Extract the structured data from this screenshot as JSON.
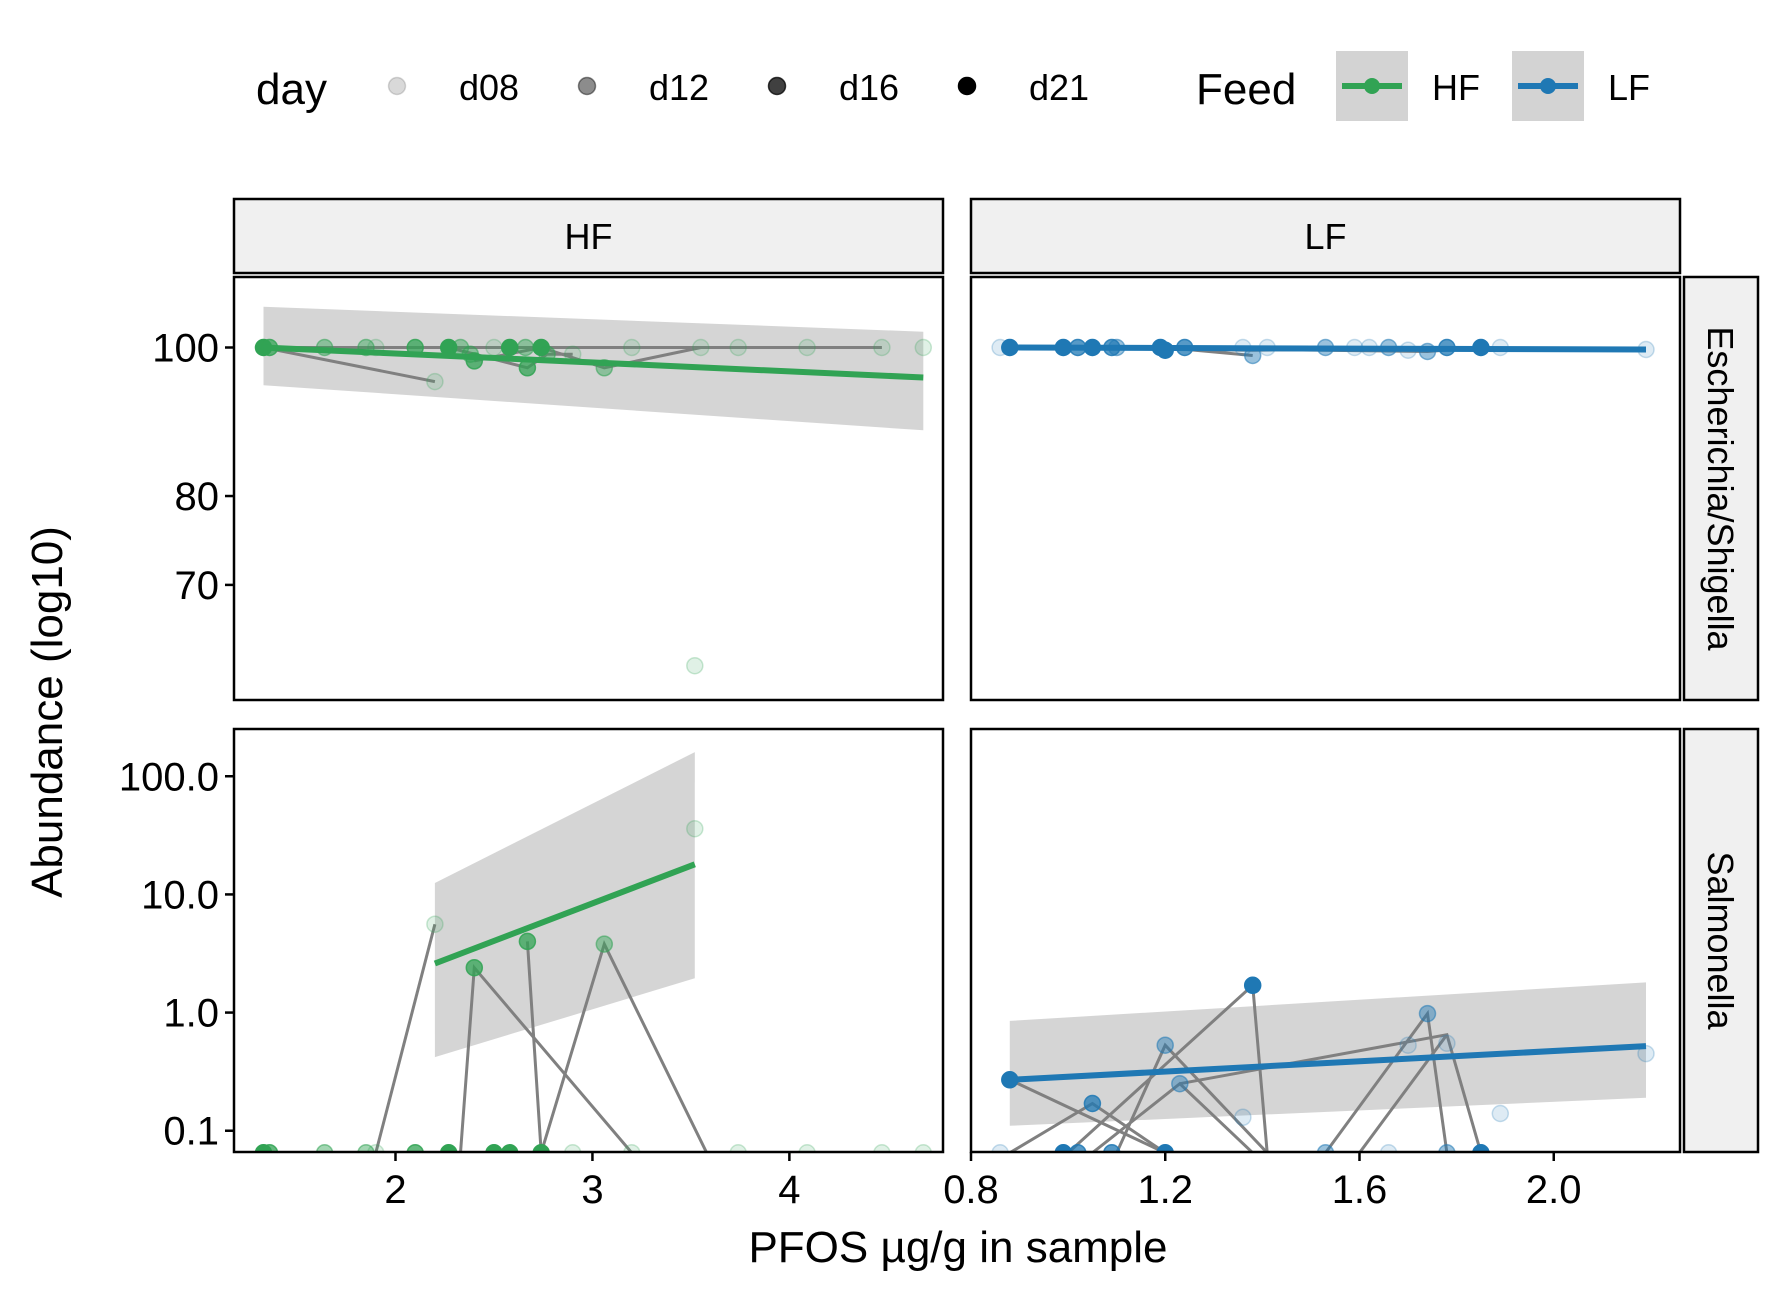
{
  "chart_data": {
    "type": "scatter",
    "xlabel": "PFOS µg/g in sample",
    "ylabel": "Abundance (log10)",
    "y_scale": "log10",
    "grid": false,
    "legend_placement": "top",
    "legend": {
      "day": {
        "title": "day",
        "items": [
          {
            "label": "d08",
            "opacity": 0.15
          },
          {
            "label": "d12",
            "opacity": 0.45
          },
          {
            "label": "d16",
            "opacity": 0.75
          },
          {
            "label": "d21",
            "opacity": 1.0
          }
        ]
      },
      "feed": {
        "title": "Feed",
        "items": [
          {
            "label": "HF",
            "color": "#31a354"
          },
          {
            "label": "LF",
            "color": "#1f78b4"
          }
        ]
      }
    },
    "colors": {
      "HF": "#31a354",
      "LF": "#1f78b4",
      "trajectory": "#808080",
      "ribbon": "#d3d3d3",
      "strip": "#f0f0f0"
    },
    "columns": [
      "HF",
      "LF"
    ],
    "rows": [
      "Escherichia/Shigella",
      "Salmonella"
    ],
    "x_axes": {
      "HF": {
        "range": [
          1.18,
          4.78
        ],
        "ticks": [
          2,
          3,
          4
        ],
        "tick_labels": [
          "2",
          "3",
          "4"
        ]
      },
      "LF": {
        "range": [
          0.8,
          2.26
        ],
        "ticks": [
          0.8,
          1.2,
          1.6,
          2.0
        ],
        "tick_labels": [
          "0.8",
          "1.2",
          "1.6",
          "2.0"
        ]
      }
    },
    "y_axes": {
      "Escherichia/Shigella": {
        "range": [
          1.77,
          2.046
        ],
        "ticks": [
          70,
          80,
          100
        ],
        "tick_labels": [
          "70",
          "80",
          "100"
        ]
      },
      "Salmonella": {
        "range": [
          -1.18,
          2.4
        ],
        "ticks": [
          0.1,
          1,
          10,
          100
        ],
        "tick_labels": [
          "0.1",
          "1.0",
          "10.0",
          "100.0"
        ]
      }
    },
    "panels": [
      {
        "col": "HF",
        "row": "Escherichia/Shigella",
        "points": [
          {
            "x": 1.33,
            "y": 100,
            "day": "d21"
          },
          {
            "x": 1.36,
            "y": 100,
            "day": "d16"
          },
          {
            "x": 1.64,
            "y": 100,
            "day": "d12"
          },
          {
            "x": 1.85,
            "y": 100,
            "day": "d12"
          },
          {
            "x": 1.9,
            "y": 100,
            "day": "d08"
          },
          {
            "x": 2.1,
            "y": 100,
            "day": "d16"
          },
          {
            "x": 2.2,
            "y": 95,
            "day": "d08"
          },
          {
            "x": 2.27,
            "y": 100,
            "day": "d21"
          },
          {
            "x": 2.33,
            "y": 100,
            "day": "d12"
          },
          {
            "x": 2.38,
            "y": 99,
            "day": "d12"
          },
          {
            "x": 2.4,
            "y": 98,
            "day": "d16"
          },
          {
            "x": 2.5,
            "y": 100,
            "day": "d08"
          },
          {
            "x": 2.58,
            "y": 100,
            "day": "d21"
          },
          {
            "x": 2.67,
            "y": 97,
            "day": "d16"
          },
          {
            "x": 2.66,
            "y": 100,
            "day": "d12"
          },
          {
            "x": 2.74,
            "y": 100,
            "day": "d21"
          },
          {
            "x": 2.77,
            "y": 99,
            "day": "d12"
          },
          {
            "x": 2.9,
            "y": 99,
            "day": "d08"
          },
          {
            "x": 3.06,
            "y": 97,
            "day": "d12"
          },
          {
            "x": 3.2,
            "y": 100,
            "day": "d08"
          },
          {
            "x": 3.52,
            "y": 62,
            "day": "d08"
          },
          {
            "x": 3.55,
            "y": 100,
            "day": "d08"
          },
          {
            "x": 3.74,
            "y": 100,
            "day": "d08"
          },
          {
            "x": 4.09,
            "y": 100,
            "day": "d08"
          },
          {
            "x": 4.47,
            "y": 100,
            "day": "d08"
          },
          {
            "x": 4.68,
            "y": 100,
            "day": "d08"
          }
        ],
        "trajectories": [
          [
            [
              1.33,
              100
            ],
            [
              2.2,
              95
            ]
          ],
          [
            [
              1.36,
              100
            ],
            [
              2.74,
              100
            ],
            [
              4.47,
              100
            ]
          ],
          [
            [
              2.4,
              98
            ],
            [
              2.74,
              100
            ],
            [
              3.06,
              97
            ],
            [
              3.55,
              100
            ]
          ],
          [
            [
              2.27,
              100
            ],
            [
              2.67,
              97
            ],
            [
              2.77,
              99
            ],
            [
              2.9,
              99
            ]
          ]
        ],
        "fit": {
          "x": [
            1.33,
            4.68
          ],
          "y": [
            100.0,
            95.6
          ],
          "ci_lower": [
            94.5,
            88.3
          ],
          "ci_upper": [
            106.3,
            102.4
          ]
        }
      },
      {
        "col": "LF",
        "row": "Escherichia/Shigella",
        "points": [
          {
            "x": 0.86,
            "y": 100,
            "day": "d08"
          },
          {
            "x": 0.88,
            "y": 100,
            "day": "d21"
          },
          {
            "x": 0.99,
            "y": 100,
            "day": "d21"
          },
          {
            "x": 1.02,
            "y": 100,
            "day": "d16"
          },
          {
            "x": 1.05,
            "y": 100,
            "day": "d21"
          },
          {
            "x": 1.09,
            "y": 100,
            "day": "d16"
          },
          {
            "x": 1.1,
            "y": 100,
            "day": "d12"
          },
          {
            "x": 1.19,
            "y": 100,
            "day": "d21"
          },
          {
            "x": 1.2,
            "y": 99.6,
            "day": "d21"
          },
          {
            "x": 1.24,
            "y": 100,
            "day": "d16"
          },
          {
            "x": 1.36,
            "y": 100,
            "day": "d08"
          },
          {
            "x": 1.38,
            "y": 98.8,
            "day": "d12"
          },
          {
            "x": 1.41,
            "y": 100,
            "day": "d08"
          },
          {
            "x": 1.53,
            "y": 100,
            "day": "d12"
          },
          {
            "x": 1.59,
            "y": 100,
            "day": "d08"
          },
          {
            "x": 1.62,
            "y": 100,
            "day": "d08"
          },
          {
            "x": 1.66,
            "y": 100,
            "day": "d12"
          },
          {
            "x": 1.7,
            "y": 99.6,
            "day": "d08"
          },
          {
            "x": 1.74,
            "y": 99.4,
            "day": "d12"
          },
          {
            "x": 1.78,
            "y": 100,
            "day": "d16"
          },
          {
            "x": 1.85,
            "y": 100,
            "day": "d21"
          },
          {
            "x": 1.89,
            "y": 100,
            "day": "d08"
          },
          {
            "x": 2.19,
            "y": 99.7,
            "day": "d08"
          }
        ],
        "trajectories": [
          [
            [
              0.88,
              100
            ],
            [
              1.38,
              99.6
            ],
            [
              1.85,
              100
            ]
          ],
          [
            [
              1.2,
              100
            ],
            [
              1.38,
              98.8
            ]
          ],
          [
            [
              1.05,
              100
            ],
            [
              1.74,
              99.4
            ],
            [
              1.85,
              100
            ]
          ]
        ],
        "fit": {
          "x": [
            0.88,
            2.19
          ],
          "y": [
            100.0,
            99.7
          ],
          "ci_lower": [
            99.7,
            99.3
          ],
          "ci_upper": [
            100.3,
            100.1
          ]
        }
      },
      {
        "col": "HF",
        "row": "Salmonella",
        "points": [
          {
            "x": 1.33,
            "y": 0.065,
            "day": "d21"
          },
          {
            "x": 1.36,
            "y": 0.065,
            "day": "d16"
          },
          {
            "x": 1.64,
            "y": 0.065,
            "day": "d12"
          },
          {
            "x": 1.85,
            "y": 0.065,
            "day": "d12"
          },
          {
            "x": 1.9,
            "y": 0.065,
            "day": "d08"
          },
          {
            "x": 2.1,
            "y": 0.065,
            "day": "d16"
          },
          {
            "x": 2.2,
            "y": 5.6,
            "day": "d08"
          },
          {
            "x": 2.27,
            "y": 0.065,
            "day": "d21"
          },
          {
            "x": 2.4,
            "y": 2.4,
            "day": "d16"
          },
          {
            "x": 2.5,
            "y": 0.065,
            "day": "d21"
          },
          {
            "x": 2.58,
            "y": 0.065,
            "day": "d21"
          },
          {
            "x": 2.67,
            "y": 4.0,
            "day": "d16"
          },
          {
            "x": 2.74,
            "y": 0.065,
            "day": "d21"
          },
          {
            "x": 2.9,
            "y": 0.065,
            "day": "d08"
          },
          {
            "x": 3.06,
            "y": 3.8,
            "day": "d12"
          },
          {
            "x": 3.2,
            "y": 0.065,
            "day": "d08"
          },
          {
            "x": 3.52,
            "y": 36,
            "day": "d08"
          },
          {
            "x": 3.74,
            "y": 0.065,
            "day": "d08"
          },
          {
            "x": 4.09,
            "y": 0.065,
            "day": "d08"
          },
          {
            "x": 4.47,
            "y": 0.065,
            "day": "d08"
          },
          {
            "x": 4.68,
            "y": 0.065,
            "day": "d08"
          }
        ],
        "trajectories": [
          [
            [
              1.9,
              0.065
            ],
            [
              2.2,
              5.6
            ]
          ],
          [
            [
              2.33,
              0.065
            ],
            [
              2.4,
              2.4
            ],
            [
              3.2,
              0.065
            ]
          ],
          [
            [
              2.67,
              4.0
            ],
            [
              2.74,
              0.065
            ],
            [
              3.06,
              3.8
            ],
            [
              3.58,
              0.065
            ]
          ]
        ],
        "fit": {
          "x": [
            2.2,
            3.52
          ],
          "y": [
            2.6,
            18
          ],
          "ci_lower": [
            0.42,
            1.95
          ],
          "ci_upper": [
            12.5,
            160
          ]
        }
      },
      {
        "col": "LF",
        "row": "Salmonella",
        "points": [
          {
            "x": 0.86,
            "y": 0.065,
            "day": "d08"
          },
          {
            "x": 0.88,
            "y": 0.27,
            "day": "d21"
          },
          {
            "x": 0.99,
            "y": 0.065,
            "day": "d21"
          },
          {
            "x": 1.02,
            "y": 0.065,
            "day": "d16"
          },
          {
            "x": 1.05,
            "y": 0.17,
            "day": "d16"
          },
          {
            "x": 1.09,
            "y": 0.065,
            "day": "d16"
          },
          {
            "x": 1.2,
            "y": 0.53,
            "day": "d12"
          },
          {
            "x": 1.2,
            "y": 0.065,
            "day": "d21"
          },
          {
            "x": 1.23,
            "y": 0.25,
            "day": "d12"
          },
          {
            "x": 1.36,
            "y": 0.13,
            "day": "d08"
          },
          {
            "x": 1.38,
            "y": 1.7,
            "day": "d21"
          },
          {
            "x": 1.53,
            "y": 0.065,
            "day": "d12"
          },
          {
            "x": 1.66,
            "y": 0.065,
            "day": "d08"
          },
          {
            "x": 1.7,
            "y": 0.53,
            "day": "d08"
          },
          {
            "x": 1.74,
            "y": 0.98,
            "day": "d12"
          },
          {
            "x": 1.78,
            "y": 0.065,
            "day": "d12"
          },
          {
            "x": 1.78,
            "y": 0.55,
            "day": "d08"
          },
          {
            "x": 1.85,
            "y": 0.065,
            "day": "d21"
          },
          {
            "x": 1.89,
            "y": 0.14,
            "day": "d08"
          },
          {
            "x": 2.19,
            "y": 0.45,
            "day": "d08"
          }
        ],
        "trajectories": [
          [
            [
              0.88,
              0.065
            ],
            [
              1.05,
              0.17
            ],
            [
              1.2,
              0.065
            ]
          ],
          [
            [
              0.88,
              0.27
            ],
            [
              1.2,
              0.065
            ]
          ],
          [
            [
              1.0,
              0.065
            ],
            [
              1.38,
              1.7
            ],
            [
              1.41,
              0.065
            ]
          ],
          [
            [
              1.1,
              0.065
            ],
            [
              1.2,
              0.53
            ],
            [
              1.41,
              0.065
            ]
          ],
          [
            [
              1.05,
              0.065
            ],
            [
              1.23,
              0.25
            ],
            [
              1.38,
              0.065
            ]
          ],
          [
            [
              1.23,
              0.25
            ],
            [
              1.78,
              0.65
            ],
            [
              1.85,
              0.065
            ]
          ],
          [
            [
              1.53,
              0.065
            ],
            [
              1.74,
              0.98
            ],
            [
              1.78,
              0.065
            ]
          ],
          [
            [
              1.6,
              0.065
            ],
            [
              1.78,
              0.65
            ]
          ]
        ],
        "fit": {
          "x": [
            0.88,
            2.19
          ],
          "y": [
            0.27,
            0.52
          ],
          "ci_lower": [
            0.11,
            0.19
          ],
          "ci_upper": [
            0.85,
            1.8
          ]
        }
      }
    ]
  }
}
